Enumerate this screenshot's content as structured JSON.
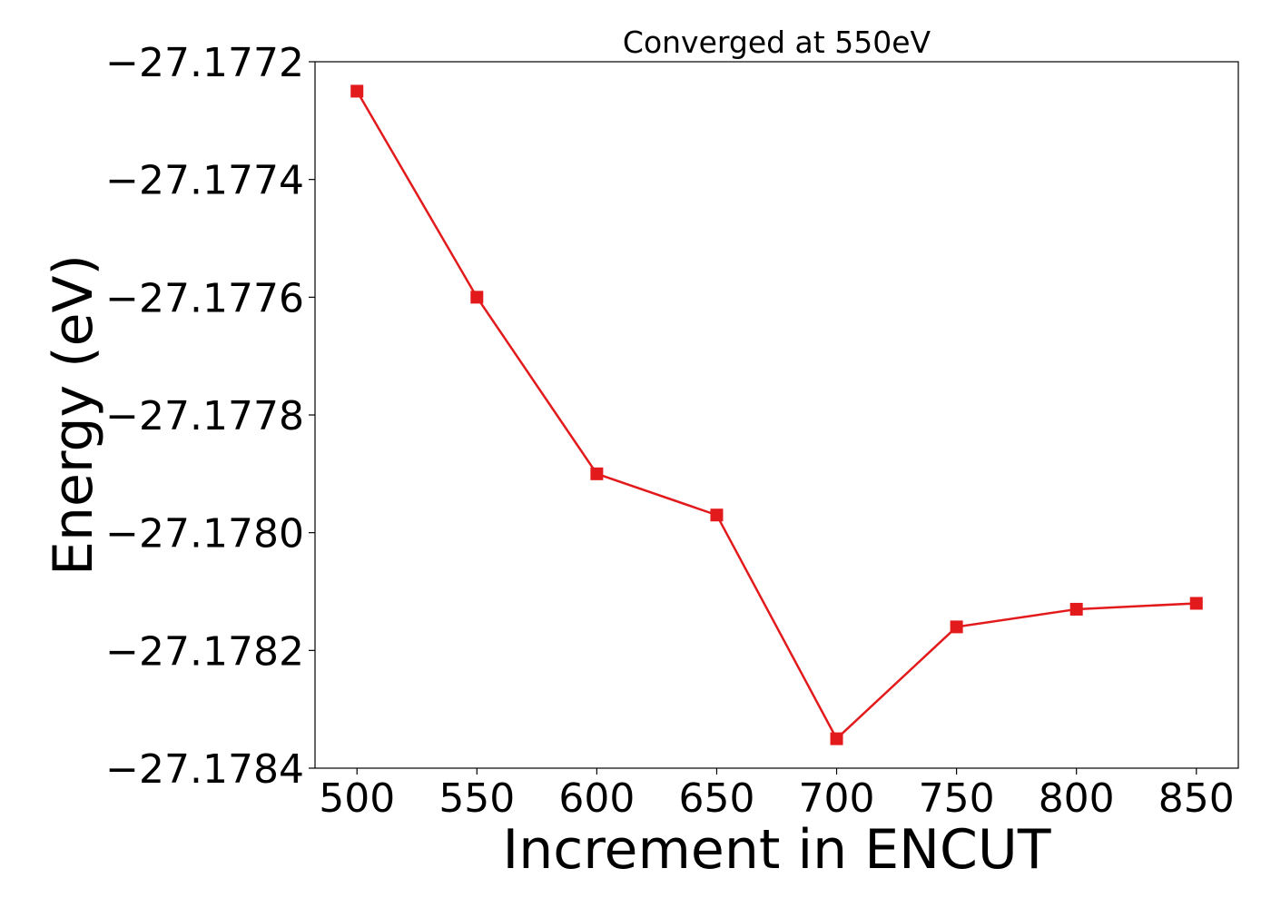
{
  "chart_data": {
    "type": "line",
    "title": "Converged at 550eV",
    "xlabel": "Increment in ENCUT",
    "ylabel": "Energy (eV)",
    "x": [
      500,
      550,
      600,
      650,
      700,
      750,
      800,
      850
    ],
    "series": [
      {
        "values": [
          -27.17725,
          -27.1776,
          -27.1779,
          -27.17797,
          -27.17835,
          -27.17816,
          -27.17813,
          -27.17812
        ],
        "color": "#e31a1c",
        "marker": "square"
      }
    ],
    "xticks": [
      500,
      550,
      600,
      650,
      700,
      750,
      800,
      850
    ],
    "xtick_labels": [
      "500",
      "550",
      "600",
      "650",
      "700",
      "750",
      "800",
      "850"
    ],
    "yticks": [
      -27.1784,
      -27.1782,
      -27.178,
      -27.1778,
      -27.1776,
      -27.1774,
      -27.1772
    ],
    "ytick_labels": [
      "−27.1784",
      "−27.1782",
      "−27.1780",
      "−27.1778",
      "−27.1776",
      "−27.1774",
      "−27.1772"
    ],
    "xlim": [
      482.5,
      867.5
    ],
    "ylim": [
      -27.1784,
      -27.1772
    ],
    "grid": false,
    "legend": "none"
  }
}
